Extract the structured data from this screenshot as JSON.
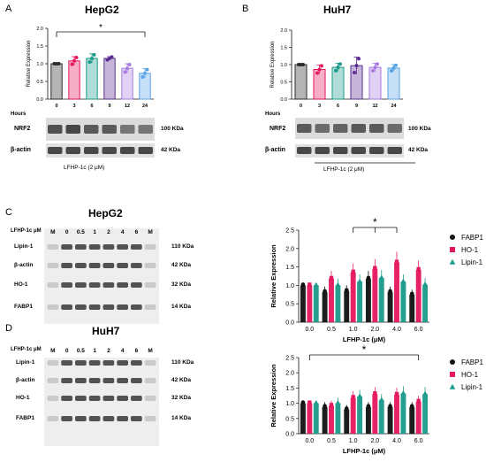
{
  "panels": {
    "A": {
      "letter": "A",
      "title": "HepG2"
    },
    "B": {
      "letter": "B",
      "title": "HuH7"
    },
    "C": {
      "letter": "C",
      "title": "HepG2"
    },
    "D": {
      "letter": "D",
      "title": "HuH7"
    }
  },
  "blots_ab": {
    "hours_label": "Hours",
    "nrf2_label": "NRF2",
    "actin_label": "β-actin",
    "nrf2_kda": "100 KDa",
    "actin_kda": "42 KDa",
    "treatment": "LFHP-1c (2 μM)"
  },
  "blots_cd": {
    "dose_label": "LFHP-1c μM",
    "lanes": [
      "M",
      "0",
      "0.5",
      "1",
      "2",
      "4",
      "6",
      "M"
    ],
    "rows": [
      {
        "label": "Lipin-1",
        "kda": "110 KDa"
      },
      {
        "label": "β-actin",
        "kda": "42 KDa"
      },
      {
        "label": "HO-1",
        "kda": "32 KDa"
      },
      {
        "label": "FABP1",
        "kda": "14 KDa"
      }
    ]
  },
  "significance": "*",
  "colors": {
    "ab_bars": [
      "#2b2b2b",
      "#e5175f",
      "#1a9a8a",
      "#5a2d91",
      "#a97ae0",
      "#5aa4e6"
    ],
    "FABP1": "#111111",
    "HO-1": "#e5175f",
    "Lipin-1": "#1a9a8a"
  },
  "chart_data": [
    {
      "panel": "A",
      "type": "bar",
      "ylabel": "Relative Expression",
      "categories": [
        "0",
        "3",
        "6",
        "9",
        "12",
        "24"
      ],
      "values": [
        1.0,
        1.08,
        1.15,
        1.15,
        0.87,
        0.73
      ],
      "errors": [
        0,
        0.12,
        0.13,
        0.05,
        0.13,
        0.13
      ],
      "ylim": [
        0,
        2.0
      ],
      "yticks": [
        "0.0",
        "0.5",
        "1.0",
        "1.5",
        "2.0"
      ],
      "sig_between": [
        "0",
        "24"
      ]
    },
    {
      "panel": "B",
      "type": "bar",
      "ylabel": "Relative Expression",
      "categories": [
        "0",
        "3",
        "6",
        "9",
        "12",
        "24"
      ],
      "values": [
        1.0,
        0.86,
        0.92,
        0.97,
        0.92,
        0.9
      ],
      "errors": [
        0,
        0.13,
        0.12,
        0.25,
        0.12,
        0.1
      ],
      "ylim": [
        0,
        2.0
      ],
      "yticks": [
        "0.0",
        "0.5",
        "1.0",
        "1.5",
        "2.0"
      ]
    },
    {
      "panel": "C",
      "type": "bar",
      "ylabel": "Relative Expression",
      "xlabel": "LFHP-1c (μM)",
      "categories": [
        "0.0",
        "0.5",
        "1.0",
        "2.0",
        "4.0",
        "6.0"
      ],
      "series": [
        {
          "name": "FABP1",
          "values": [
            1.0,
            0.82,
            0.85,
            1.18,
            0.82,
            0.75
          ]
        },
        {
          "name": "HO-1",
          "values": [
            1.0,
            1.18,
            1.35,
            1.45,
            1.62,
            1.42
          ]
        },
        {
          "name": "Lipin-1",
          "values": [
            1.0,
            1.0,
            1.1,
            1.2,
            1.1,
            1.02
          ]
        }
      ],
      "ylim": [
        0,
        2.5
      ],
      "yticks": [
        "0.0",
        "0.5",
        "1.0",
        "1.5",
        "2.0",
        "2.5"
      ],
      "sig_between": [
        "1.0",
        "2.0",
        "4.0"
      ]
    },
    {
      "panel": "D",
      "type": "bar",
      "ylabel": "Relative Expression",
      "xlabel": "LFHP-1c (μM)",
      "categories": [
        "0.0",
        "0.5",
        "1.0",
        "2.0",
        "4.0",
        "6.0"
      ],
      "series": [
        {
          "name": "FABP1",
          "values": [
            1.0,
            0.88,
            0.8,
            0.88,
            0.88,
            0.88
          ]
        },
        {
          "name": "HO-1",
          "values": [
            1.0,
            0.92,
            1.18,
            1.3,
            1.28,
            1.05
          ]
        },
        {
          "name": "Lipin-1",
          "values": [
            1.0,
            1.0,
            1.22,
            1.1,
            1.32,
            1.3
          ]
        }
      ],
      "ylim": [
        0,
        2.5
      ],
      "yticks": [
        "0.0",
        "0.5",
        "1.0",
        "1.5",
        "2.0",
        "2.5"
      ],
      "sig_between": [
        "0.0",
        "6.0"
      ]
    }
  ]
}
